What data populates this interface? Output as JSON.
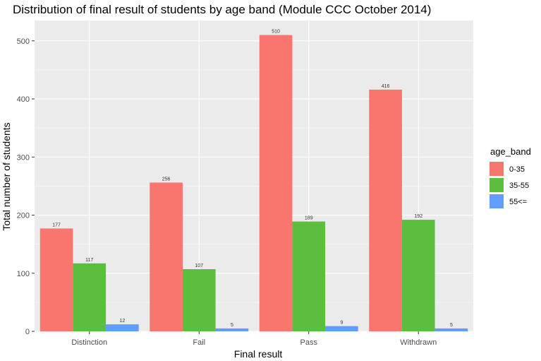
{
  "chart_data": {
    "type": "bar",
    "title": "Distribution of final result of students by age band (Module CCC October 2014)",
    "xlabel": "Final result",
    "ylabel": "Total number of students",
    "categories": [
      "Distinction",
      "Fail",
      "Pass",
      "Withdrawn"
    ],
    "series": [
      {
        "name": "0-35",
        "color": "#F8766D",
        "values": [
          177,
          256,
          510,
          416
        ]
      },
      {
        "name": "35-55",
        "color": "#5CBE3E",
        "values": [
          117,
          107,
          189,
          192
        ]
      },
      {
        "name": "55<=",
        "color": "#619CFF",
        "values": [
          12,
          5,
          9,
          5
        ]
      }
    ],
    "ylim": [
      0,
      535
    ],
    "yticks": [
      0,
      100,
      200,
      300,
      400,
      500
    ],
    "grid": true,
    "legend": {
      "title": "age_band",
      "placement": "right"
    },
    "panel_color": "#EBEBEB",
    "grid_color": "#FFFFFF"
  }
}
